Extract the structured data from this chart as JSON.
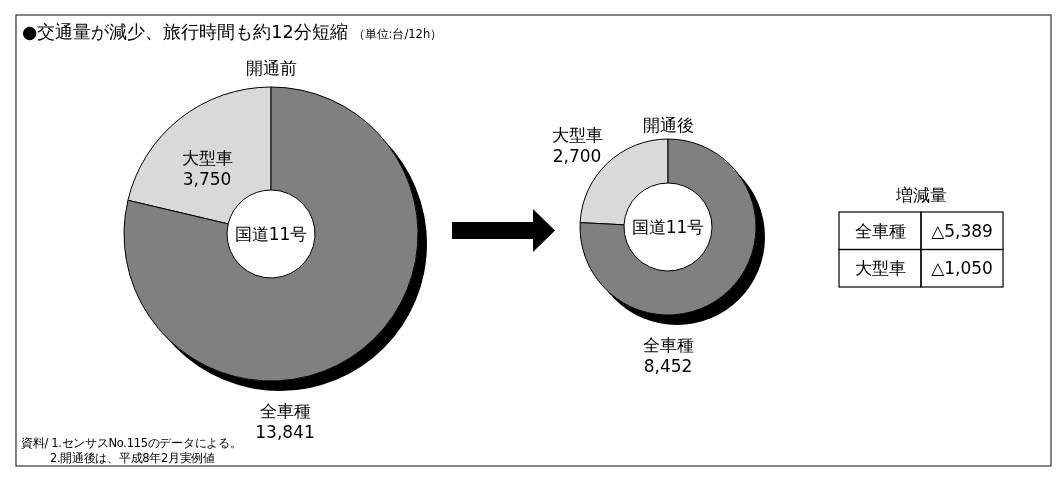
{
  "chart_data": [
    {
      "type": "donut",
      "title": "●交通量が減少、旅行時間も約12分短縮",
      "subtitle": "（単位:台/12h）",
      "categories": [
        "大型車",
        "全車種"
      ],
      "values": [
        3750,
        13841
      ],
      "colors": [
        "#d9d9d9",
        "#808080"
      ],
      "value_labels": [
        "3,750",
        "13,841"
      ],
      "annotations": [
        "開通前",
        "国道11号",
        "資料/ 1.センサスNo.115のデータによる。",
        "2.開通後は、平成8年2月実例値"
      ]
    },
    {
      "type": "donut",
      "categories": [
        "大型車",
        "全車種"
      ],
      "values": [
        2700,
        8452
      ],
      "colors": [
        "#d9d9d9",
        "#808080"
      ],
      "value_labels": [
        "2,700",
        "8,452"
      ],
      "annotations": [
        "開通後",
        "国道11号"
      ]
    },
    {
      "type": "other",
      "title": "増減量",
      "annotations": [
        "全車種",
        "△5,389",
        "大型車",
        "△1,050"
      ]
    }
  ]
}
